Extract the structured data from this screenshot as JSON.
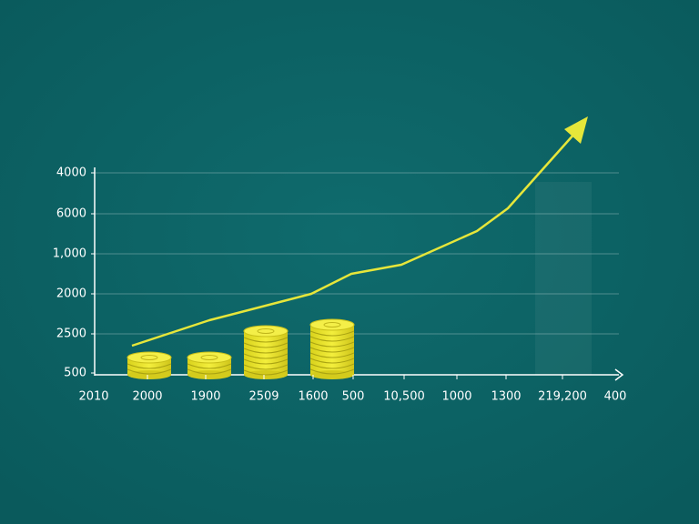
{
  "y_axis_labels": [
    "4000",
    "6000",
    "1,000",
    "2000",
    "2500",
    "500"
  ],
  "x_axis_labels": [
    "2010",
    "2000",
    "1900",
    "2509",
    "1600",
    "500",
    "10,500",
    "1000",
    "1300",
    "219,200",
    "400"
  ]
}
